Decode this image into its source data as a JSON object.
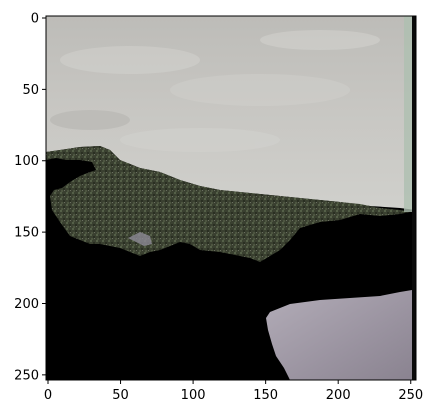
{
  "image": {
    "description_free": true,
    "extent": {
      "x": [
        0,
        255
      ],
      "y": [
        255,
        0
      ]
    },
    "colors": {
      "sky": "#b5b5b1",
      "sky_light": "#c9c8c4",
      "hill_dark": "#2f3528",
      "hill_mid": "#4a4f3c",
      "mask": "#000000",
      "water": "#9a93a0",
      "water_light": "#b8b2bc",
      "edge_strip": "#aebfb0"
    }
  },
  "axes": {
    "x_ticks": [
      {
        "value": 0,
        "label": "0"
      },
      {
        "value": 50,
        "label": "50"
      },
      {
        "value": 100,
        "label": "100"
      },
      {
        "value": 150,
        "label": "150"
      },
      {
        "value": 200,
        "label": "200"
      },
      {
        "value": 250,
        "label": "250"
      }
    ],
    "y_ticks": [
      {
        "value": 0,
        "label": "0"
      },
      {
        "value": 50,
        "label": "50"
      },
      {
        "value": 100,
        "label": "100"
      },
      {
        "value": 150,
        "label": "150"
      },
      {
        "value": 200,
        "label": "200"
      },
      {
        "value": 250,
        "label": "250"
      }
    ]
  }
}
